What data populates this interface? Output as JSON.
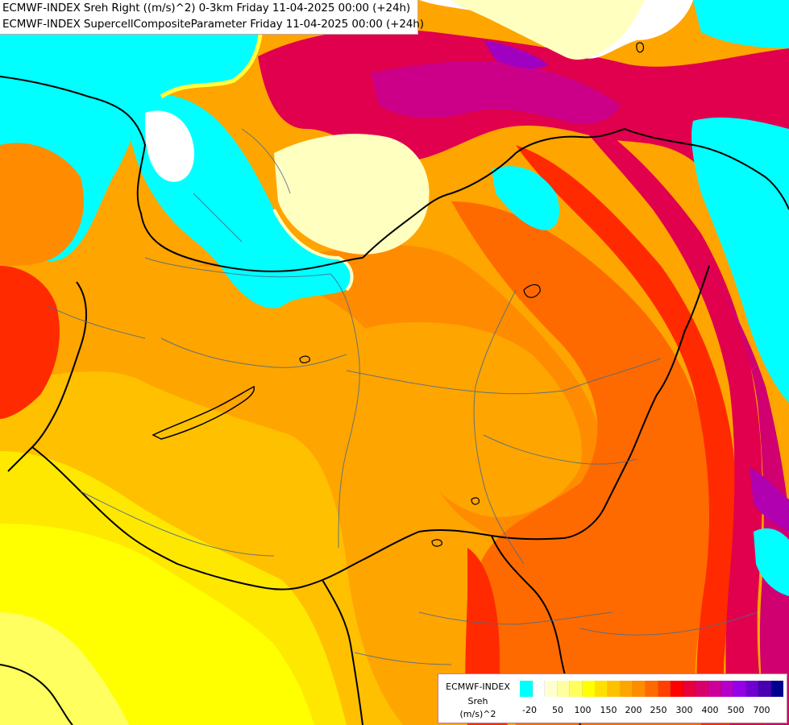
{
  "header": {
    "line1": "ECMWF-INDEX Sreh Right ((m/s)^2) 0-3km Friday 11-04-2025 00:00 (+24h)",
    "line2": "ECMWF-INDEX SupercellCompositeParameter Friday 11-04-2025 00:00 (+24h)"
  },
  "legend": {
    "title": "ECMWF-INDEX",
    "subtitle": "Sreh",
    "unit": "(m/s)^2",
    "swatch_colors": [
      "#00ffff",
      "#ffffff",
      "#ffffd0",
      "#ffffa0",
      "#ffff60",
      "#ffff00",
      "#ffe000",
      "#ffc000",
      "#ffa500",
      "#ff8c00",
      "#ff6a00",
      "#ff4000",
      "#ff0000",
      "#e8003a",
      "#d80068",
      "#cc0099",
      "#b400c8",
      "#9400e8",
      "#7000d0",
      "#4800b0",
      "#000090"
    ],
    "tick_labels": [
      "-20",
      "50",
      "100",
      "150",
      "200",
      "250",
      "300",
      "400",
      "500",
      "700"
    ]
  },
  "colors": {
    "cyan": "#00ffff",
    "white": "#ffffff",
    "pale_yellow": "#ffffc0",
    "yellow": "#ffff00",
    "light_orange": "#ffc000",
    "orange": "#ffa500",
    "dark_orange": "#ff7f00",
    "red_orange": "#ff4500",
    "red": "#ff0000",
    "crimson": "#e0004d",
    "magenta": "#cc0080",
    "purple": "#a000c0"
  }
}
